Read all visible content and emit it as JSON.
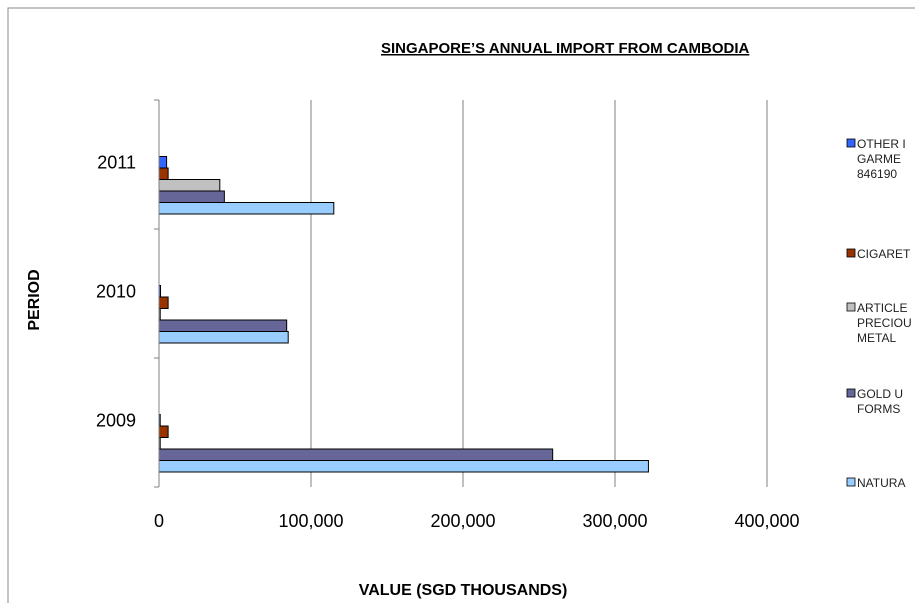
{
  "chart_data": {
    "type": "bar",
    "orientation": "horizontal",
    "title": "SINGAPORE’S  ANNUAL IMPORT FROM CAMBODIA",
    "xlabel": "VALUE (SGD THOUSANDS)",
    "ylabel": "PERIOD",
    "categories": [
      "2009",
      "2010",
      "2011"
    ],
    "xlim": [
      0,
      400000
    ],
    "xticks": [
      "0",
      "100,000",
      "200,000",
      "300,000",
      "400,000"
    ],
    "xtick_values": [
      0,
      100000,
      200000,
      300000,
      400000
    ],
    "grid": "vertical major gridlines",
    "legend_position": "right",
    "series": [
      {
        "name_lines": [
          "NATURA"
        ],
        "color": "#99ccff",
        "values": [
          322000,
          85000,
          115000
        ]
      },
      {
        "name_lines": [
          "GOLD U",
          "FORMS"
        ],
        "color": "#666699",
        "values": [
          259000,
          84000,
          43000
        ]
      },
      {
        "name_lines": [
          "ARTICLE",
          "PRECIOU",
          "METAL"
        ],
        "color": "#c0c0c0",
        "values": [
          500,
          500,
          40000
        ]
      },
      {
        "name_lines": [
          "CIGARET"
        ],
        "color": "#993300",
        "values": [
          6000,
          6000,
          6000
        ]
      },
      {
        "name_lines": [
          "OTHER I",
          "GARME",
          "846190"
        ],
        "color": "#3366ff",
        "values": [
          500,
          1000,
          5000
        ]
      }
    ]
  }
}
